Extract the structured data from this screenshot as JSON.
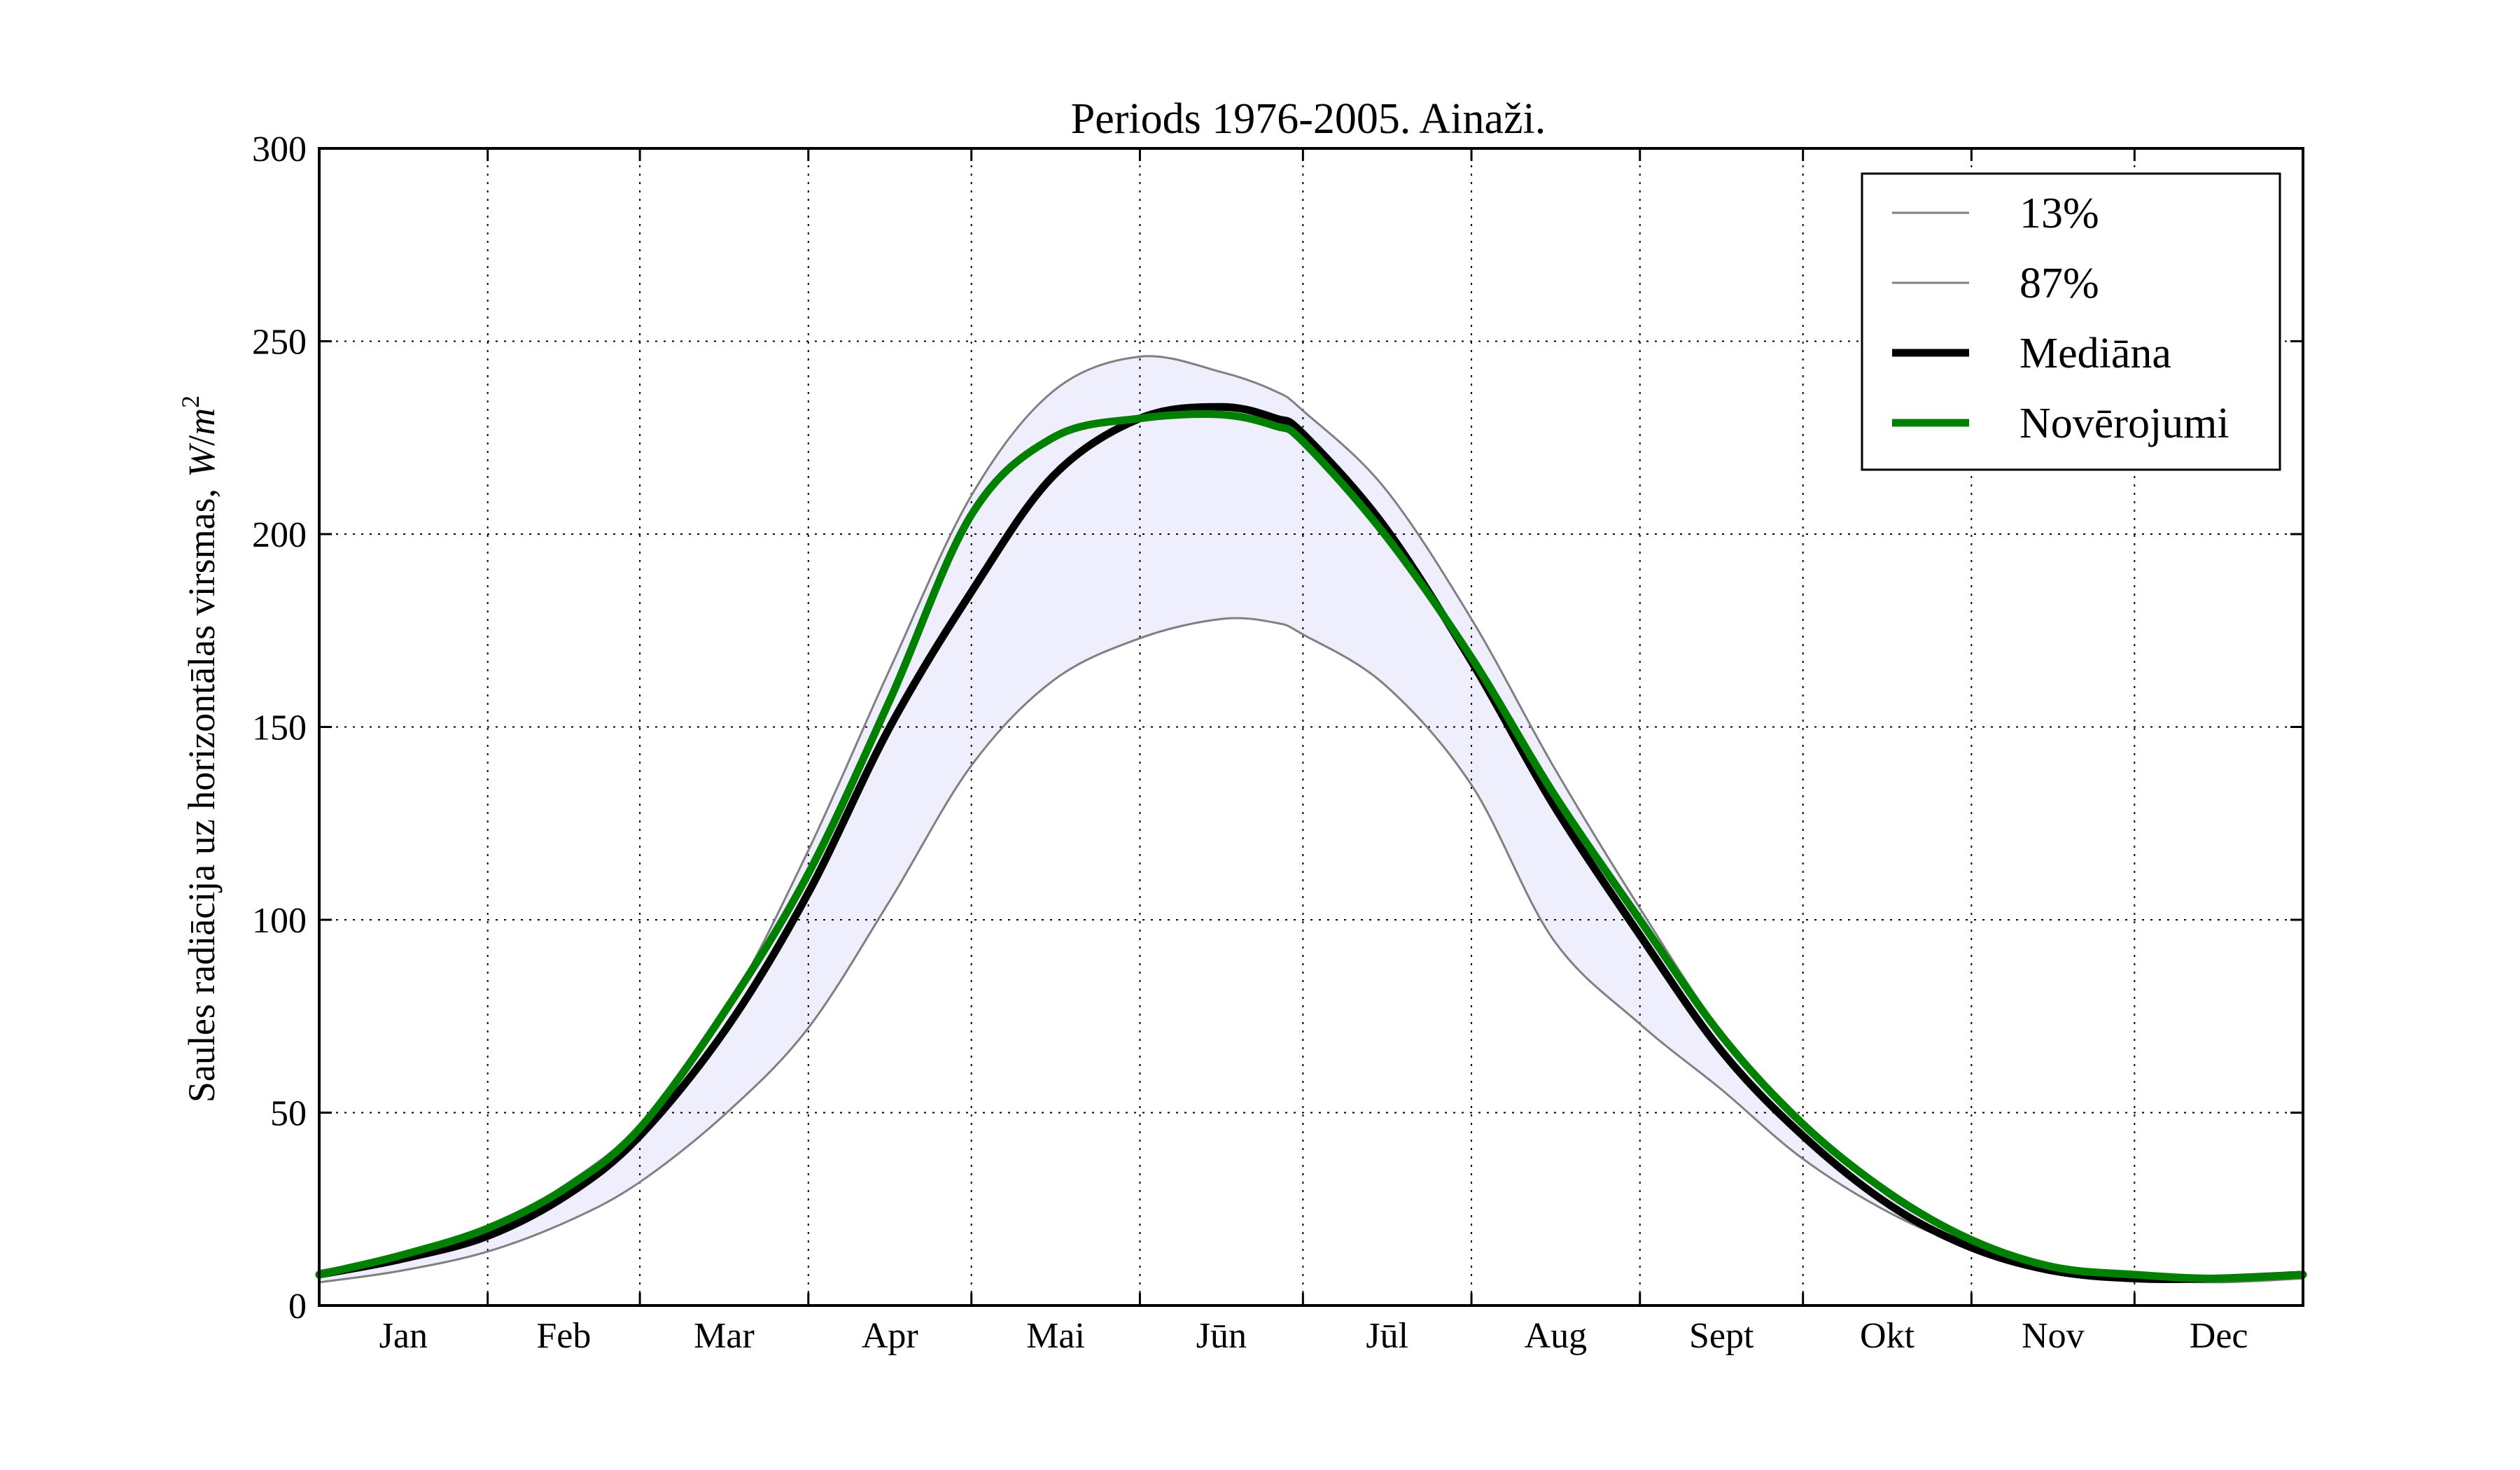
{
  "chart_data": {
    "type": "line",
    "title": "Periods 1976-2005. Ainaži.",
    "xlabel": "",
    "ylabel": "Saules radiācija uz horizontālas virsmas,",
    "ylabel_unit_var": "W",
    "ylabel_unit_den": "m",
    "ylabel_unit_exp": "2",
    "ylim": [
      0,
      300
    ],
    "xlim": [
      0,
      365
    ],
    "y_ticks": [
      0,
      50,
      100,
      150,
      200,
      250,
      300
    ],
    "months": [
      "Jan",
      "Feb",
      "Mar",
      "Apr",
      "Mai",
      "Jūn",
      "Jūl",
      "Aug",
      "Sept",
      "Okt",
      "Nov",
      "Dec"
    ],
    "month_boundaries_day": [
      0,
      31,
      59,
      90,
      120,
      151,
      181,
      212,
      243,
      273,
      304,
      334,
      365
    ],
    "x": [
      0,
      15,
      31,
      46,
      59,
      75,
      90,
      105,
      120,
      135,
      151,
      166,
      176,
      181,
      196,
      212,
      227,
      243,
      258,
      273,
      289,
      304,
      319,
      334,
      349,
      365
    ],
    "series": [
      {
        "name": "13%",
        "color": "#808080",
        "values": [
          6,
          9,
          14,
          22,
          32,
          50,
          72,
          105,
          140,
          162,
          173,
          178,
          177,
          174,
          161,
          135,
          95,
          73,
          56,
          38,
          24,
          15,
          10,
          7,
          6,
          7
        ]
      },
      {
        "name": "87%",
        "color": "#808080",
        "values": [
          9,
          13,
          20,
          32,
          47,
          77,
          118,
          165,
          210,
          237,
          246,
          242,
          237,
          232,
          212,
          178,
          140,
          103,
          71,
          48,
          28,
          17,
          10,
          7,
          7,
          8
        ]
      },
      {
        "name": "Mediāna",
        "color": "#000000",
        "values": [
          8,
          12,
          18,
          29,
          44,
          72,
          107,
          150,
          185,
          215,
          230,
          233,
          230,
          226,
          202,
          167,
          130,
          96,
          66,
          44,
          26,
          15,
          9,
          7,
          7,
          8
        ]
      },
      {
        "name": "Novērojumi",
        "color": "#008000",
        "values": [
          8,
          13,
          20,
          31,
          46,
          77,
          112,
          157,
          205,
          225,
          230,
          231,
          228,
          224,
          200,
          168,
          133,
          100,
          70,
          47,
          29,
          17,
          10,
          8,
          7,
          8
        ]
      }
    ],
    "band": {
      "lower_series": "13%",
      "upper_series": "87%",
      "color": "#eeeefc"
    },
    "grid": true,
    "legend": {
      "placement": "top-right",
      "entries": [
        "13%",
        "87%",
        "Mediāna",
        "Novērojumi"
      ]
    }
  }
}
